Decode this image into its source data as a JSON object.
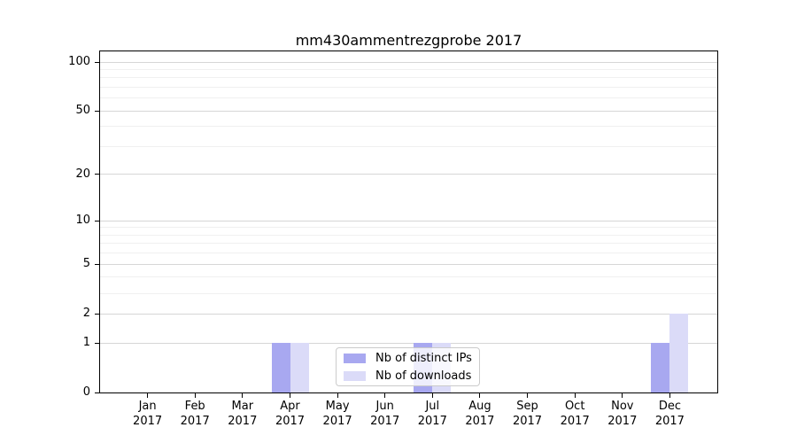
{
  "chart_data": {
    "type": "bar",
    "title": "mm430ammentrezgprobe 2017",
    "x_year": "2017",
    "categories": [
      "Jan",
      "Feb",
      "Mar",
      "Apr",
      "May",
      "Jun",
      "Jul",
      "Aug",
      "Sep",
      "Oct",
      "Nov",
      "Dec"
    ],
    "series": [
      {
        "name": "Nb of distinct IPs",
        "color": "#a8a8f0",
        "values": [
          0,
          0,
          0,
          1,
          0,
          0,
          1,
          0,
          0,
          0,
          0,
          1
        ]
      },
      {
        "name": "Nb of downloads",
        "color": "#dbdbf8",
        "values": [
          0,
          0,
          0,
          1,
          0,
          0,
          1,
          0,
          0,
          0,
          0,
          2
        ]
      }
    ],
    "y_scale": "log1p",
    "ylim": [
      0,
      116
    ],
    "y_major_ticks": [
      0,
      1,
      2,
      5,
      10,
      20,
      50,
      100
    ],
    "y_minor_gridlines": [
      3,
      4,
      6,
      7,
      8,
      9,
      30,
      40,
      60,
      70,
      80,
      90
    ],
    "grid": true,
    "legend_position": "lower center",
    "colors": {
      "grid_major": "#d6d6d6",
      "grid_minor": "#f0f0f0",
      "axis": "#000000",
      "legend_border": "#cbcbcb"
    }
  }
}
